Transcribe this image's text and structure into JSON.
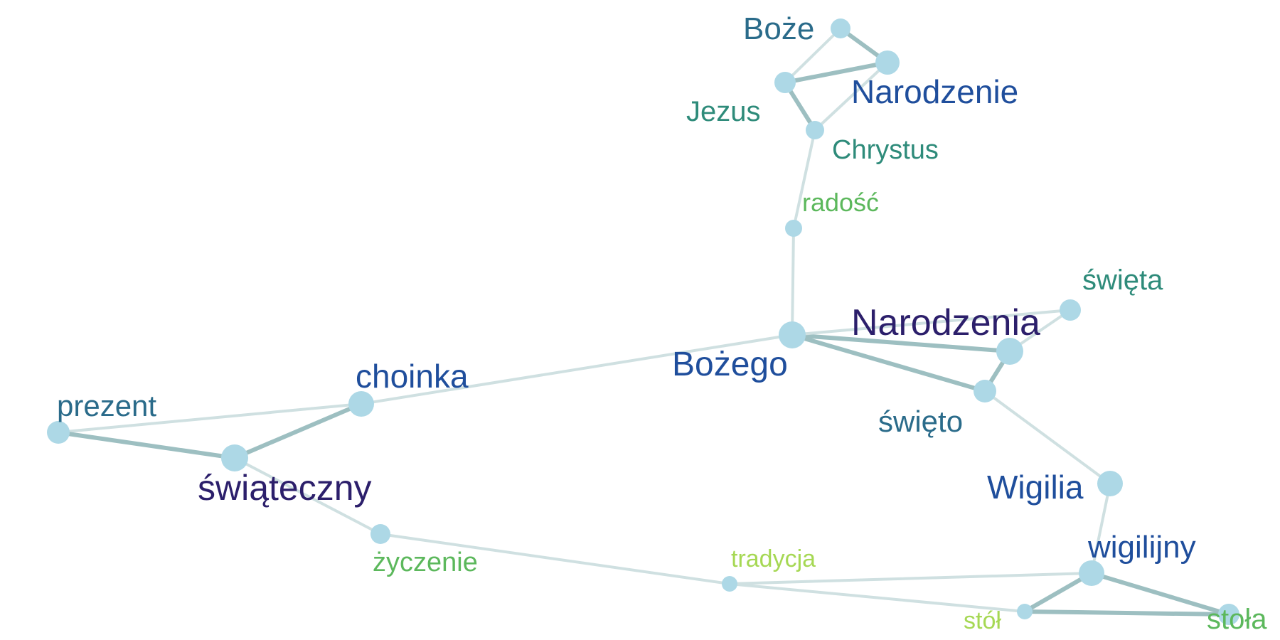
{
  "graph": {
    "nodes": [
      {
        "id": "boze",
        "label": "Boże",
        "color": "#2a6b8a",
        "weight": 0.55
      },
      {
        "id": "narodzenie",
        "label": "Narodzenie",
        "color": "#1f4e9c",
        "weight": 0.75
      },
      {
        "id": "jezus",
        "label": "Jezus",
        "color": "#2e8b7a",
        "weight": 0.45
      },
      {
        "id": "chrystus",
        "label": "Chrystus",
        "color": "#2e8b7a",
        "weight": 0.35
      },
      {
        "id": "radosc",
        "label": "radość",
        "color": "#5cb85c",
        "weight": 0.2
      },
      {
        "id": "bozego",
        "label": "Bożego",
        "color": "#1f4e9c",
        "weight": 0.8
      },
      {
        "id": "narodzenia",
        "label": "Narodzenia",
        "color": "#2c1f6b",
        "weight": 0.9
      },
      {
        "id": "swieta",
        "label": "święta",
        "color": "#2e8b7a",
        "weight": 0.45
      },
      {
        "id": "swieto",
        "label": "święto",
        "color": "#2a6b8a",
        "weight": 0.55
      },
      {
        "id": "choinka",
        "label": "choinka",
        "color": "#1f4e9c",
        "weight": 0.6
      },
      {
        "id": "prezent",
        "label": "prezent",
        "color": "#2a6b8a",
        "weight": 0.5
      },
      {
        "id": "swiateczny",
        "label": "świąteczny",
        "color": "#2c1f6b",
        "weight": 0.85
      },
      {
        "id": "zyczenie",
        "label": "życzenie",
        "color": "#5cb85c",
        "weight": 0.25
      },
      {
        "id": "tradycja",
        "label": "tradycja",
        "color": "#a6d854",
        "weight": 0.1
      },
      {
        "id": "wigilia",
        "label": "Wigilia",
        "color": "#1f4e9c",
        "weight": 0.6
      },
      {
        "id": "wigilijny",
        "label": "wigilijny",
        "color": "#1f4e9c",
        "weight": 0.6
      },
      {
        "id": "stol",
        "label": "stół",
        "color": "#a6d854",
        "weight": 0.1
      },
      {
        "id": "stola",
        "label": "stoła",
        "color": "#5cb85c",
        "weight": 0.35
      }
    ],
    "edges": [
      {
        "source": "boze",
        "target": "narodzenie",
        "strength": 0.8
      },
      {
        "source": "boze",
        "target": "jezus",
        "strength": 0.3
      },
      {
        "source": "jezus",
        "target": "narodzenie",
        "strength": 0.8
      },
      {
        "source": "jezus",
        "target": "chrystus",
        "strength": 0.8
      },
      {
        "source": "narodzenie",
        "target": "chrystus",
        "strength": 0.3
      },
      {
        "source": "chrystus",
        "target": "radosc",
        "strength": 0.2
      },
      {
        "source": "radosc",
        "target": "bozego",
        "strength": 0.2
      },
      {
        "source": "bozego",
        "target": "narodzenia",
        "strength": 0.9
      },
      {
        "source": "bozego",
        "target": "swieta",
        "strength": 0.3
      },
      {
        "source": "bozego",
        "target": "swieto",
        "strength": 0.8
      },
      {
        "source": "narodzenia",
        "target": "swieta",
        "strength": 0.3
      },
      {
        "source": "narodzenia",
        "target": "swieto",
        "strength": 0.8
      },
      {
        "source": "bozego",
        "target": "choinka",
        "strength": 0.2
      },
      {
        "source": "choinka",
        "target": "prezent",
        "strength": 0.2
      },
      {
        "source": "choinka",
        "target": "swiateczny",
        "strength": 0.8
      },
      {
        "source": "prezent",
        "target": "swiateczny",
        "strength": 0.8
      },
      {
        "source": "swiateczny",
        "target": "zyczenie",
        "strength": 0.3
      },
      {
        "source": "zyczenie",
        "target": "tradycja",
        "strength": 0.2
      },
      {
        "source": "swieto",
        "target": "wigilia",
        "strength": 0.2
      },
      {
        "source": "wigilia",
        "target": "wigilijny",
        "strength": 0.3
      },
      {
        "source": "tradycja",
        "target": "wigilijny",
        "strength": 0.2
      },
      {
        "source": "tradycja",
        "target": "stol",
        "strength": 0.2
      },
      {
        "source": "wigilijny",
        "target": "stol",
        "strength": 0.8
      },
      {
        "source": "wigilijny",
        "target": "stola",
        "strength": 0.8
      },
      {
        "source": "stol",
        "target": "stola",
        "strength": 0.8
      }
    ],
    "colors": {
      "node_fill": "#add8e6",
      "edge_strong": "#9dbfc1",
      "edge_weak": "#cfe0e1"
    }
  }
}
